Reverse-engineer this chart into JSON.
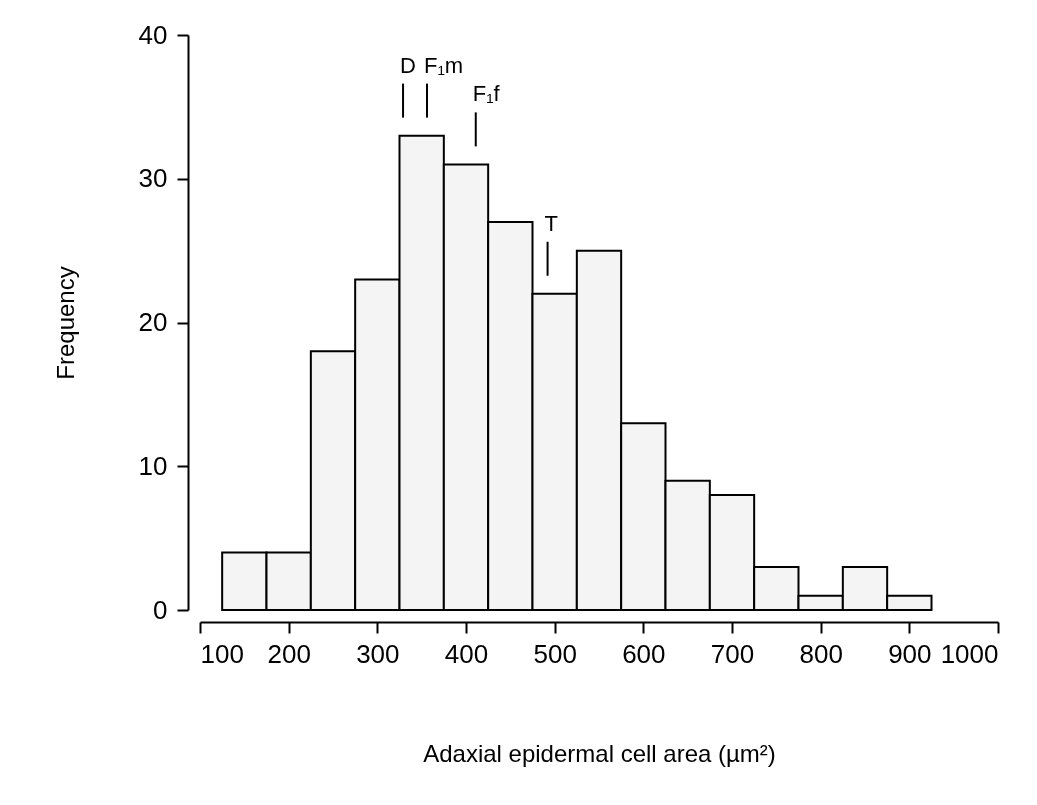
{
  "chart_data": {
    "type": "histogram",
    "xlabel": "Adaxial epidermal cell area (µm²)",
    "ylabel": "Frequency",
    "color": "#f4f4f4",
    "bins": [
      125,
      175,
      225,
      275,
      325,
      375,
      425,
      475,
      525,
      575,
      625,
      675,
      725,
      775,
      825,
      875,
      925
    ],
    "values": [
      4,
      4,
      18,
      23,
      33,
      31,
      27,
      22,
      25,
      13,
      9,
      8,
      3,
      1,
      3,
      1
    ],
    "xlim": [
      100,
      1000
    ],
    "xticks": [
      100,
      200,
      300,
      400,
      500,
      600,
      700,
      800,
      900,
      1000
    ],
    "ylim": [
      0,
      40
    ],
    "yticks": [
      0,
      10,
      20,
      30,
      40
    ],
    "ref_lines": [
      {
        "axis": "x",
        "value": 329,
        "label": "D"
      },
      {
        "axis": "x",
        "value": 356,
        "label": "F₁m"
      },
      {
        "axis": "x",
        "value": 411,
        "label": "F₁f"
      },
      {
        "axis": "x",
        "value": 492,
        "label": "T"
      }
    ]
  }
}
